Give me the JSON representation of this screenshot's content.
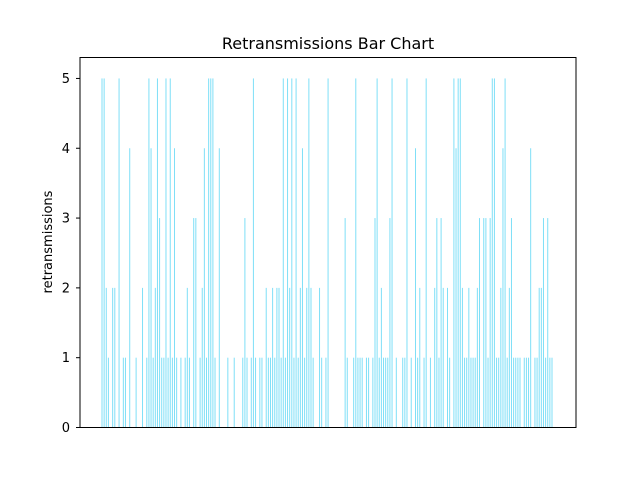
{
  "chart_data": {
    "type": "bar",
    "title": "Retransmissions Bar Chart",
    "xlabel": "",
    "ylabel": "retransmissions",
    "ylim": [
      0,
      5.3
    ],
    "yticks": [
      0,
      1,
      2,
      3,
      4,
      5
    ],
    "grid": false,
    "bar_color": "#7fdff7",
    "values": [
      5,
      5,
      2,
      1,
      0,
      2,
      2,
      0,
      5,
      0,
      1,
      1,
      0,
      4,
      0,
      0,
      1,
      0,
      0,
      2,
      0,
      1,
      5,
      4,
      1,
      2,
      5,
      3,
      1,
      1,
      5,
      1,
      5,
      1,
      4,
      1,
      0,
      1,
      0,
      1,
      2,
      1,
      0,
      3,
      3,
      0,
      1,
      2,
      4,
      1,
      5,
      5,
      5,
      1,
      0,
      4,
      0,
      0,
      0,
      1,
      0,
      0,
      1,
      0,
      0,
      0,
      1,
      3,
      1,
      0,
      1,
      5,
      1,
      0,
      1,
      1,
      0,
      2,
      1,
      1,
      2,
      1,
      2,
      2,
      1,
      5,
      1,
      5,
      2,
      5,
      1,
      5,
      1,
      2,
      4,
      1,
      2,
      5,
      2,
      1,
      0,
      0,
      2,
      1,
      0,
      1,
      5,
      0,
      0,
      0,
      0,
      0,
      0,
      0,
      3,
      1,
      0,
      0,
      1,
      5,
      1,
      1,
      1,
      0,
      1,
      1,
      0,
      1,
      3,
      5,
      1,
      2,
      1,
      1,
      1,
      3,
      5,
      0,
      1,
      0,
      0,
      1,
      1,
      5,
      0,
      1,
      0,
      4,
      1,
      2,
      0,
      1,
      5,
      0,
      1,
      0,
      2,
      3,
      1,
      3,
      2,
      0,
      2,
      1,
      0,
      5,
      4,
      5,
      5,
      2,
      1,
      1,
      2,
      1,
      1,
      1,
      2,
      3,
      0,
      3,
      3,
      1,
      3,
      5,
      5,
      1,
      1,
      2,
      4,
      5,
      1,
      2,
      3,
      1,
      1,
      1,
      1,
      0,
      1,
      1,
      1,
      4,
      0,
      1,
      1,
      2,
      2,
      3,
      1,
      3,
      1,
      1
    ]
  }
}
